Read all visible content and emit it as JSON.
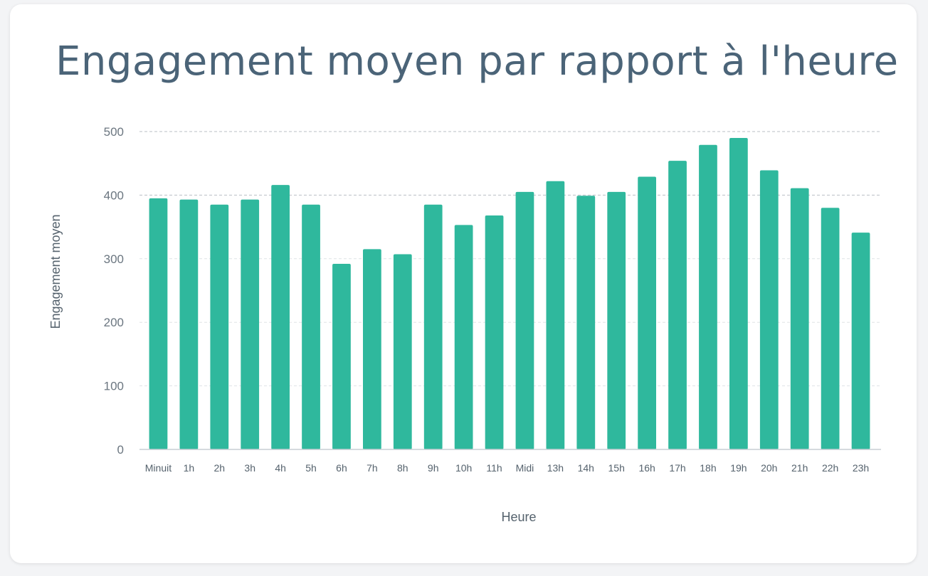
{
  "chart_data": {
    "type": "bar",
    "title": "Engagement moyen par rapport à l'heure",
    "xlabel": "Heure",
    "ylabel": "Engagement moyen",
    "ylim": [
      0,
      500
    ],
    "yticks": [
      0,
      100,
      200,
      300,
      400,
      500
    ],
    "grid": true,
    "color": "#2fb89d",
    "categories": [
      "Minuit",
      "1h",
      "2h",
      "3h",
      "4h",
      "5h",
      "6h",
      "7h",
      "8h",
      "9h",
      "10h",
      "11h",
      "Midi",
      "13h",
      "14h",
      "15h",
      "16h",
      "17h",
      "18h",
      "19h",
      "20h",
      "21h",
      "22h",
      "23h"
    ],
    "values": [
      395,
      393,
      385,
      393,
      416,
      385,
      292,
      315,
      307,
      385,
      353,
      368,
      405,
      422,
      399,
      405,
      429,
      454,
      479,
      490,
      439,
      411,
      380,
      341
    ]
  }
}
